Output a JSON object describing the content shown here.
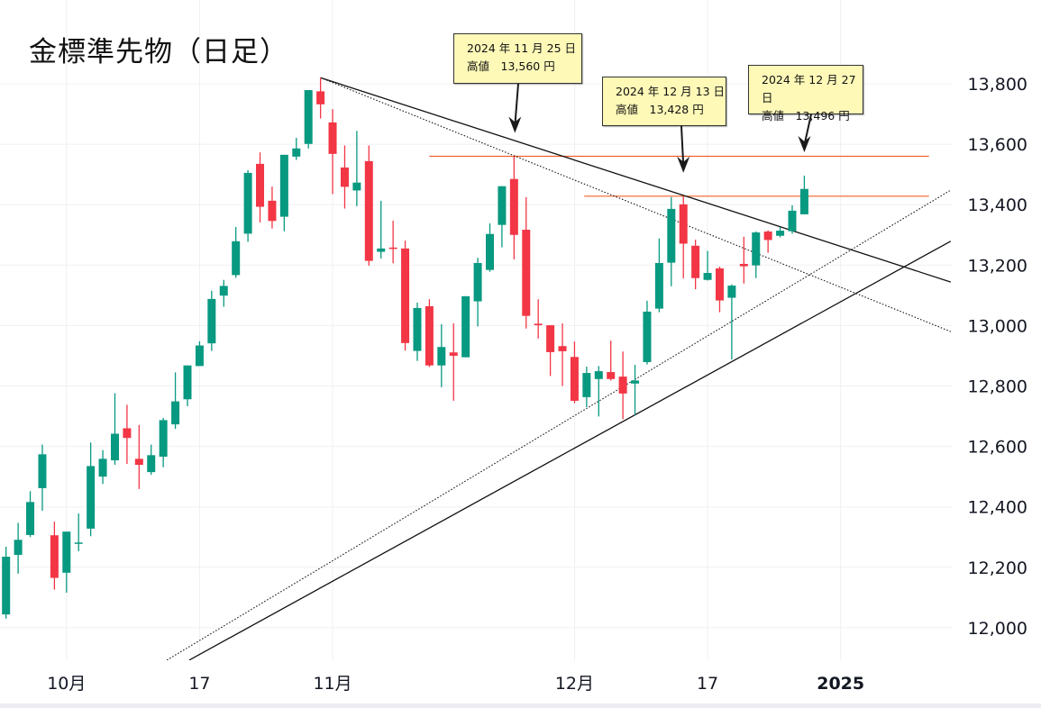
{
  "title": "金標準先物（日足）",
  "colors": {
    "up": "#089981",
    "down": "#f23645",
    "resistance": "#f0622a",
    "trend": "#111111",
    "grid": "#f0f0f3"
  },
  "annotations": [
    {
      "date": "2024 年 11 月 25 日",
      "label": "高値　13,560 円",
      "target_index": 42,
      "target_price": 13560
    },
    {
      "date": "2024 年 12 月 13 日",
      "label": "高値　13,428 円",
      "target_index": 56,
      "target_price": 13428
    },
    {
      "date": "2024 年 12 月 27 日",
      "label": "高値　13,496 円",
      "target_index": 66,
      "target_price": 13496
    }
  ],
  "chart_data": {
    "type": "candlestick",
    "title": "金標準先物（日足）",
    "ylim": [
      11890,
      13830
    ],
    "yticks": [
      12000,
      12200,
      12400,
      12600,
      12800,
      13000,
      13200,
      13400,
      13600,
      13800
    ],
    "ytick_labels": [
      "12,000",
      "12,200",
      "12,400",
      "12,600",
      "12,800",
      "13,000",
      "13,200",
      "13,400",
      "13,600",
      "13,800"
    ],
    "xticks": [
      {
        "index": 5,
        "label": "10月",
        "bold": false
      },
      {
        "index": 16,
        "label": "17",
        "bold": false
      },
      {
        "index": 27,
        "label": "11月",
        "bold": false
      },
      {
        "index": 47,
        "label": "12月",
        "bold": false
      },
      {
        "index": 58,
        "label": "17",
        "bold": false
      },
      {
        "index": 69,
        "label": "2025",
        "bold": true
      }
    ],
    "ohlc_fields": [
      "open",
      "high",
      "low",
      "close"
    ],
    "candles": [
      [
        12044,
        12268,
        12030,
        12235
      ],
      [
        12241,
        12347,
        12179,
        12291
      ],
      [
        12307,
        12452,
        12300,
        12416
      ],
      [
        12462,
        12606,
        12387,
        12574
      ],
      [
        12306,
        12351,
        12126,
        12165
      ],
      [
        12182,
        12318,
        12116,
        12318
      ],
      [
        12278,
        12378,
        12253,
        12282
      ],
      [
        12328,
        12613,
        12303,
        12535
      ],
      [
        12500,
        12588,
        12476,
        12559
      ],
      [
        12554,
        12776,
        12539,
        12642
      ],
      [
        12660,
        12738,
        12542,
        12628
      ],
      [
        12559,
        12671,
        12459,
        12539
      ],
      [
        12515,
        12606,
        12506,
        12571
      ],
      [
        12566,
        12694,
        12531,
        12687
      ],
      [
        12673,
        12845,
        12658,
        12749
      ],
      [
        12756,
        12868,
        12733,
        12868
      ],
      [
        12866,
        12948,
        12866,
        12934
      ],
      [
        12941,
        13115,
        12916,
        13088
      ],
      [
        13099,
        13151,
        13062,
        13131
      ],
      [
        13167,
        13326,
        13158,
        13279
      ],
      [
        13304,
        13514,
        13277,
        13505
      ],
      [
        13535,
        13573,
        13341,
        13393
      ],
      [
        13413,
        13460,
        13321,
        13346
      ],
      [
        13360,
        13565,
        13312,
        13565
      ],
      [
        13559,
        13621,
        13548,
        13586
      ],
      [
        13601,
        13779,
        13586,
        13779
      ],
      [
        13775,
        13820,
        13685,
        13732
      ],
      [
        13672,
        13716,
        13435,
        13568
      ],
      [
        13523,
        13596,
        13387,
        13459
      ],
      [
        13447,
        13644,
        13395,
        13473
      ],
      [
        13544,
        13596,
        13198,
        13214
      ],
      [
        13244,
        13413,
        13222,
        13255
      ],
      [
        13258,
        13347,
        13206,
        13256
      ],
      [
        13255,
        13281,
        12917,
        12942
      ],
      [
        12916,
        13076,
        12883,
        13058
      ],
      [
        13064,
        13087,
        12863,
        12868
      ],
      [
        12868,
        13004,
        12796,
        12929
      ],
      [
        12911,
        13007,
        12751,
        12900
      ],
      [
        12895,
        13097,
        12895,
        13097
      ],
      [
        13080,
        13224,
        12997,
        13207
      ],
      [
        13184,
        13338,
        13178,
        13303
      ],
      [
        13333,
        13461,
        13259,
        13461
      ],
      [
        13485,
        13560,
        13219,
        13300
      ],
      [
        13317,
        13425,
        12990,
        13032
      ],
      [
        13006,
        13087,
        12957,
        13001
      ],
      [
        13001,
        13001,
        12833,
        12912
      ],
      [
        12932,
        13007,
        12800,
        12915
      ],
      [
        12896,
        12947,
        12743,
        12751
      ],
      [
        12763,
        12864,
        12730,
        12843
      ],
      [
        12823,
        12866,
        12699,
        12849
      ],
      [
        12846,
        12950,
        12818,
        12823
      ],
      [
        12831,
        12914,
        12690,
        12775
      ],
      [
        12808,
        12870,
        12704,
        12818
      ],
      [
        12879,
        13082,
        12871,
        13046
      ],
      [
        13056,
        13288,
        13044,
        13207
      ],
      [
        13208,
        13425,
        13130,
        13386
      ],
      [
        13401,
        13428,
        13156,
        13271
      ],
      [
        13264,
        13284,
        13120,
        13157
      ],
      [
        13151,
        13247,
        13149,
        13174
      ],
      [
        13189,
        13195,
        13044,
        13083
      ],
      [
        13092,
        13136,
        12888,
        13132
      ],
      [
        13204,
        13294,
        13139,
        13196
      ],
      [
        13199,
        13311,
        13157,
        13308
      ],
      [
        13311,
        13315,
        13241,
        13283
      ],
      [
        13297,
        13325,
        13292,
        13314
      ],
      [
        13312,
        13398,
        13304,
        13380
      ],
      [
        13368,
        13496,
        13368,
        13452
      ]
    ],
    "trendlines": [
      {
        "name": "resistance-trendline-solid",
        "style": "solid",
        "from": [
          26,
          13820
        ],
        "to": [
          78.1,
          13144
        ]
      },
      {
        "name": "resistance-trendline-dotted",
        "style": "dotted",
        "from": [
          26,
          13820
        ],
        "to": [
          78.1,
          12980
        ]
      },
      {
        "name": "support-trendline-solid",
        "style": "solid",
        "from": [
          15.15,
          11893
        ],
        "to": [
          78.1,
          13279
        ]
      },
      {
        "name": "support-trendline-dotted",
        "style": "dotted",
        "from": [
          13.3,
          11893
        ],
        "to": [
          78.1,
          13448
        ]
      }
    ],
    "horizontal_lines": [
      {
        "name": "high-13560-line",
        "price": 13560,
        "from_index": 35,
        "to_index": 76.3
      },
      {
        "name": "high-13428-line",
        "price": 13428,
        "from_index": 47.8,
        "to_index": 76.3
      }
    ]
  }
}
